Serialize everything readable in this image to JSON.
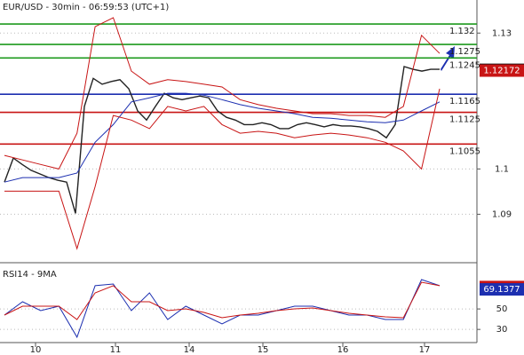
{
  "x_axis": {
    "labels": [
      "10",
      "11",
      "14",
      "15",
      "16",
      "17"
    ]
  },
  "chart_data": [
    {
      "type": "line",
      "title": "EUR/USD - 30min - 06:59:53 (UTC+1)",
      "ylim": [
        1.0795,
        1.1373
      ],
      "yticks": [
        1.09,
        1.1,
        1.13
      ],
      "grid": true,
      "levels": [
        {
          "value": 1.132,
          "color": "#1e9a1e"
        },
        {
          "value": 1.1275,
          "color": "#1e9a1e"
        },
        {
          "value": 1.1245,
          "color": "#1e9a1e"
        },
        {
          "value": 1.1165,
          "color": "#1c2fb0"
        },
        {
          "value": 1.1125,
          "color": "#c81414"
        },
        {
          "value": 1.1055,
          "color": "#c81414"
        }
      ],
      "markers": [
        {
          "value": 1.12189,
          "color": "#111111"
        },
        {
          "value": 1.12172,
          "color": "#c81414"
        }
      ],
      "series": [
        {
          "color": "#222222",
          "width": 1.4,
          "values": [
            1.0971,
            1.1024,
            1.101,
            1.0997,
            1.0989,
            1.0981,
            1.0975,
            1.0971,
            1.0902,
            1.1138,
            1.12,
            1.1187,
            1.1193,
            1.1197,
            1.1177,
            1.1128,
            1.1108,
            1.1138,
            1.1167,
            1.1157,
            1.1153,
            1.1157,
            1.1161,
            1.1157,
            1.1128,
            1.1114,
            1.1108,
            1.1098,
            1.1098,
            1.1102,
            1.1098,
            1.1089,
            1.1089,
            1.1098,
            1.1102,
            1.1098,
            1.1093,
            1.1098,
            1.1095,
            1.1095,
            1.1093,
            1.1089,
            1.1083,
            1.1069,
            1.1098,
            1.1226,
            1.122,
            1.1216,
            1.122,
            1.122
          ]
        },
        {
          "color": "#1c2fb0",
          "width": 1,
          "values": [
            1.0971,
            1.0981,
            1.0981,
            1.0981,
            1.0991,
            1.1059,
            1.1098,
            1.1148,
            1.1157,
            1.1167,
            1.1167,
            1.1163,
            1.1153,
            1.1142,
            1.1134,
            1.1128,
            1.1122,
            1.1114,
            1.1112,
            1.1108,
            1.1104,
            1.1102,
            1.1108,
            1.1128,
            1.1148
          ]
        },
        {
          "color": "#c81414",
          "width": 1,
          "values": [
            1.103,
            1.102,
            1.101,
            1.1,
            1.1079,
            1.1314,
            1.1334,
            1.1216,
            1.1187,
            1.1197,
            1.1193,
            1.1187,
            1.1181,
            1.1153,
            1.1142,
            1.1134,
            1.1128,
            1.1122,
            1.1122,
            1.1118,
            1.1118,
            1.1114,
            1.1138,
            1.1295,
            1.1255
          ]
        },
        {
          "color": "#c81414",
          "width": 1,
          "values": [
            1.0951,
            1.0951,
            1.0951,
            1.0951,
            1.0824,
            1.0961,
            1.1118,
            1.1108,
            1.1089,
            1.1138,
            1.1128,
            1.1138,
            1.1098,
            1.1079,
            1.1083,
            1.1079,
            1.1069,
            1.1075,
            1.1079,
            1.1075,
            1.1069,
            1.1059,
            1.104,
            1.1,
            1.1177
          ]
        }
      ]
    },
    {
      "type": "line",
      "title": "RSI14 - 9MA",
      "ylim": [
        18,
        90
      ],
      "yticks": [
        30,
        50
      ],
      "grid": true,
      "markers": [
        {
          "value": 71.4421,
          "color": "#c81414"
        },
        {
          "value": 69.1377,
          "color": "#1c2fb0"
        }
      ],
      "series": [
        {
          "color": "#1c2fb0",
          "width": 1,
          "values": [
            44.0,
            57.0,
            48.4,
            52.7,
            22.4,
            72.7,
            74.4,
            48.4,
            65.7,
            39.7,
            52.7,
            44.0,
            35.4,
            44.0,
            44.0,
            48.4,
            52.7,
            52.7,
            48.4,
            44.0,
            44.0,
            39.7,
            39.7,
            78.7,
            72.7
          ]
        },
        {
          "color": "#c81414",
          "width": 1,
          "values": [
            44.0,
            52.7,
            52.7,
            52.7,
            39.7,
            65.7,
            72.7,
            57.0,
            57.0,
            48.4,
            50.1,
            46.6,
            41.4,
            44.0,
            45.8,
            48.4,
            50.1,
            51.0,
            48.4,
            45.8,
            44.0,
            42.3,
            41.4,
            76.1,
            72.7
          ]
        }
      ]
    }
  ]
}
